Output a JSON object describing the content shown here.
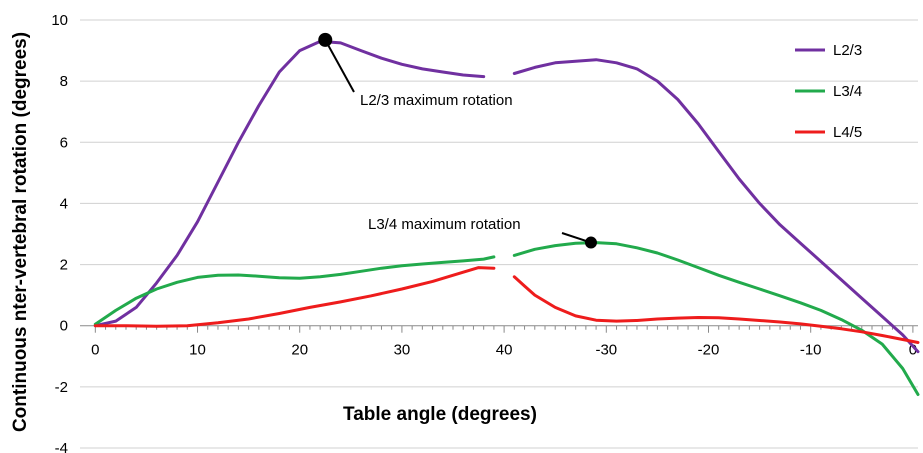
{
  "chart_data": {
    "type": "line",
    "title": "",
    "xlabel": "Table angle (degrees)",
    "ylabel": "Continuous nter-vertebral rotation (degrees)",
    "ylim": [
      -4,
      10
    ],
    "yticks": [
      -4,
      -2,
      0,
      2,
      4,
      6,
      8,
      10
    ],
    "x_positions": [
      0,
      10,
      20,
      30,
      40,
      50,
      60,
      70,
      80,
      90
    ],
    "x_tick_labels": [
      "0",
      "10",
      "20",
      "30",
      "40",
      "-30",
      "-20",
      "-10",
      "0"
    ],
    "x_tick_label_positions": [
      0,
      10,
      20,
      30,
      40,
      50,
      60,
      70,
      80
    ],
    "xlim": [
      -1.5,
      80.5
    ],
    "grid": true,
    "legend_position": "right",
    "series": [
      {
        "name": "L2/3",
        "color": "#7030a0",
        "segments": [
          [
            [
              0,
              0
            ],
            [
              2,
              0.15
            ],
            [
              4,
              0.6
            ],
            [
              6,
              1.4
            ],
            [
              8,
              2.3
            ],
            [
              10,
              3.4
            ],
            [
              12,
              4.7
            ],
            [
              14,
              6.0
            ],
            [
              16,
              7.2
            ],
            [
              18,
              8.3
            ],
            [
              20,
              9.0
            ],
            [
              22,
              9.3
            ],
            [
              24,
              9.25
            ],
            [
              26,
              9.0
            ],
            [
              28,
              8.75
            ],
            [
              30,
              8.55
            ],
            [
              32,
              8.4
            ],
            [
              34,
              8.3
            ],
            [
              36,
              8.2
            ],
            [
              38,
              8.15
            ]
          ],
          [
            [
              41,
              8.25
            ],
            [
              43,
              8.45
            ],
            [
              45,
              8.6
            ],
            [
              47,
              8.65
            ],
            [
              49,
              8.7
            ],
            [
              51,
              8.6
            ],
            [
              53,
              8.4
            ],
            [
              55,
              8.0
            ],
            [
              57,
              7.4
            ],
            [
              59,
              6.6
            ],
            [
              61,
              5.7
            ],
            [
              63,
              4.8
            ],
            [
              65,
              4.0
            ],
            [
              67,
              3.3
            ],
            [
              69,
              2.7
            ],
            [
              71,
              2.1
            ],
            [
              73,
              1.5
            ],
            [
              75,
              0.9
            ],
            [
              77,
              0.3
            ],
            [
              79,
              -0.3
            ],
            [
              80.5,
              -0.85
            ]
          ]
        ]
      },
      {
        "name": "L3/4",
        "color": "#22aa4c",
        "segments": [
          [
            [
              0,
              0.05
            ],
            [
              2,
              0.5
            ],
            [
              4,
              0.9
            ],
            [
              6,
              1.2
            ],
            [
              8,
              1.42
            ],
            [
              10,
              1.58
            ],
            [
              12,
              1.65
            ],
            [
              14,
              1.66
            ],
            [
              16,
              1.62
            ],
            [
              18,
              1.57
            ],
            [
              20,
              1.55
            ],
            [
              22,
              1.6
            ],
            [
              24,
              1.68
            ],
            [
              26,
              1.78
            ],
            [
              28,
              1.88
            ],
            [
              30,
              1.96
            ],
            [
              32,
              2.02
            ],
            [
              34,
              2.07
            ],
            [
              36,
              2.12
            ],
            [
              38,
              2.18
            ],
            [
              39,
              2.25
            ]
          ],
          [
            [
              41,
              2.3
            ],
            [
              43,
              2.5
            ],
            [
              45,
              2.62
            ],
            [
              47,
              2.7
            ],
            [
              49,
              2.72
            ],
            [
              51,
              2.68
            ],
            [
              53,
              2.55
            ],
            [
              55,
              2.38
            ],
            [
              57,
              2.15
            ],
            [
              59,
              1.9
            ],
            [
              61,
              1.65
            ],
            [
              63,
              1.42
            ],
            [
              65,
              1.2
            ],
            [
              67,
              0.98
            ],
            [
              69,
              0.75
            ],
            [
              71,
              0.5
            ],
            [
              73,
              0.2
            ],
            [
              75,
              -0.15
            ],
            [
              77,
              -0.6
            ],
            [
              79,
              -1.4
            ],
            [
              80.5,
              -2.25
            ]
          ]
        ]
      },
      {
        "name": "L4/5",
        "color": "#ee1c1c",
        "segments": [
          [
            [
              0,
              0
            ],
            [
              3,
              0
            ],
            [
              6,
              -0.02
            ],
            [
              9,
              0
            ],
            [
              12,
              0.1
            ],
            [
              15,
              0.22
            ],
            [
              18,
              0.4
            ],
            [
              21,
              0.6
            ],
            [
              24,
              0.78
            ],
            [
              27,
              0.98
            ],
            [
              30,
              1.2
            ],
            [
              33,
              1.45
            ],
            [
              36,
              1.75
            ],
            [
              37.5,
              1.9
            ],
            [
              39,
              1.88
            ]
          ],
          [
            [
              41,
              1.6
            ],
            [
              42,
              1.3
            ],
            [
              43,
              1.0
            ],
            [
              45,
              0.6
            ],
            [
              47,
              0.32
            ],
            [
              49,
              0.18
            ],
            [
              51,
              0.15
            ],
            [
              53,
              0.17
            ],
            [
              55,
              0.22
            ],
            [
              57,
              0.25
            ],
            [
              59,
              0.27
            ],
            [
              61,
              0.26
            ],
            [
              63,
              0.22
            ],
            [
              65,
              0.17
            ],
            [
              67,
              0.12
            ],
            [
              69,
              0.06
            ],
            [
              71,
              -0.02
            ],
            [
              73,
              -0.1
            ],
            [
              75,
              -0.2
            ],
            [
              77,
              -0.32
            ],
            [
              80.5,
              -0.55
            ]
          ]
        ]
      }
    ],
    "annotations": [
      {
        "text": "L2/3 maximum rotation",
        "series": "L2/3",
        "x": 22.5,
        "y": 9.35
      },
      {
        "text": "L3/4 maximum rotation",
        "series": "L3/4",
        "x": 48.5,
        "y": 2.72
      }
    ]
  }
}
